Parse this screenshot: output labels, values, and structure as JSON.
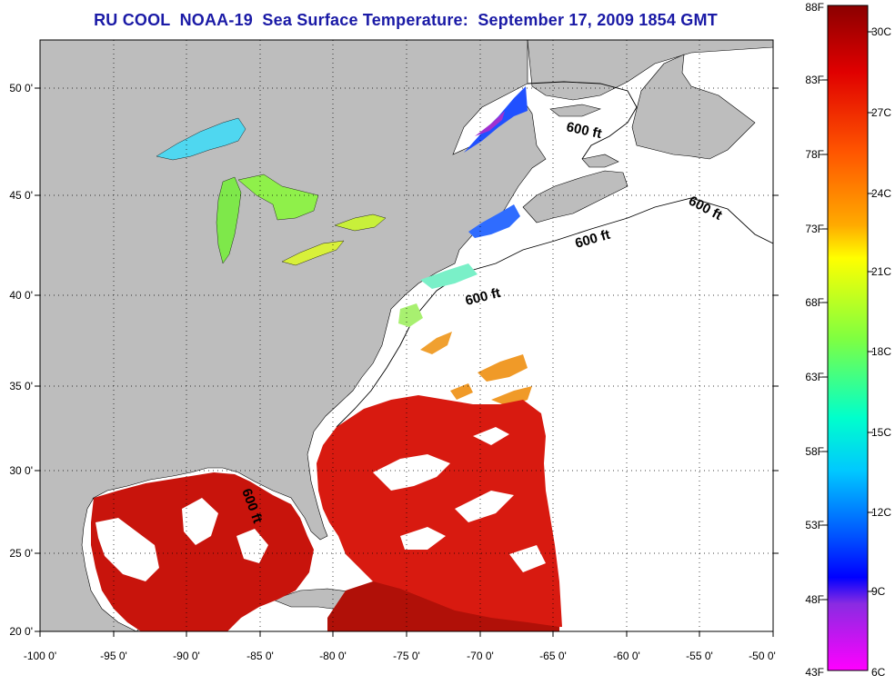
{
  "title": "RU COOL  NOAA-19  Sea Surface Temperature:  September 17, 2009 1854 GMT",
  "map": {
    "lon_ticks": [
      "-100 0'",
      "-95 0'",
      "-90 0'",
      "-85 0'",
      "-80 0'",
      "-75 0'",
      "-70 0'",
      "-65 0'",
      "-60 0'",
      "-55 0'",
      "-50 0'"
    ],
    "lat_ticks": [
      "50 0'",
      "45 0'",
      "40 0'",
      "35 0'",
      "30 0'",
      "25 0'",
      "20 0'"
    ],
    "contour_labels": [
      "600 ft",
      "600 ft",
      "600 ft",
      "600 ft",
      "600 ft"
    ],
    "land_color": "#bdbdbd",
    "ocean_color": "#ffffff"
  },
  "colorbar": {
    "fahrenheit_labels": [
      "88F",
      "83F",
      "78F",
      "73F",
      "68F",
      "63F",
      "58F",
      "53F",
      "48F",
      "43F"
    ],
    "celsius_labels": [
      "30C",
      "27C",
      "24C",
      "21C",
      "18C",
      "15C",
      "12C",
      "9C",
      "6C"
    ],
    "colors": [
      "#8b0000",
      "#ff0000",
      "#ff8c00",
      "#ffff00",
      "#7cfc00",
      "#00ffff",
      "#0000ff",
      "#8a2be2",
      "#ff00ff"
    ]
  }
}
